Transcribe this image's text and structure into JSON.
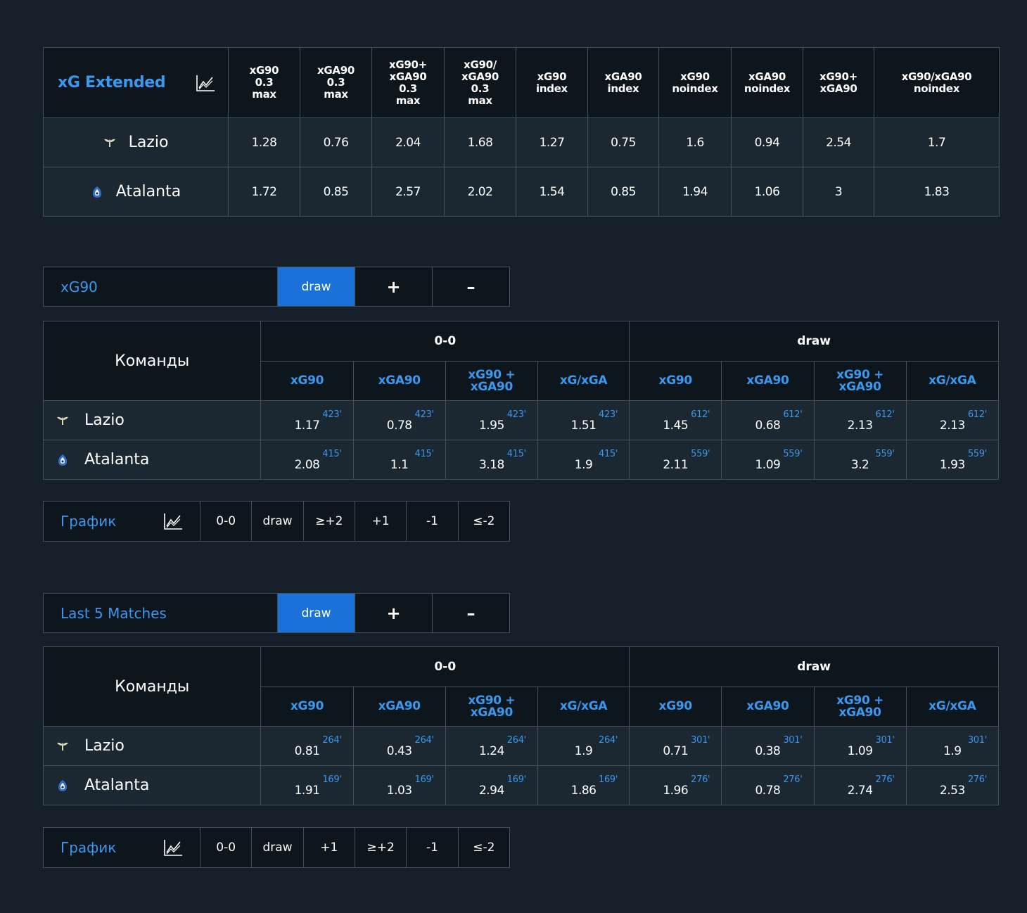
{
  "colors": {
    "background": "#15202a",
    "dark_cell": "#0d151d",
    "row_cell": "#1b2731",
    "accent": "#3a98ef",
    "active_button": "#1a72d8",
    "border": "#44505c"
  },
  "extended": {
    "title": "xG Extended",
    "icon": "chart-icon",
    "headers": [
      [
        "xG90",
        "0.3",
        "max"
      ],
      [
        "xGA90",
        "0.3",
        "max"
      ],
      [
        "xG90+",
        "xGA90",
        "0.3",
        "max"
      ],
      [
        "xG90/",
        "xGA90",
        "0.3",
        "max"
      ],
      [
        "xG90",
        "index"
      ],
      [
        "xGA90",
        "index"
      ],
      [
        "xG90",
        "noindex"
      ],
      [
        "xGA90",
        "noindex"
      ],
      [
        "xG90+",
        "xGA90"
      ],
      [
        "xG90/xGA90",
        "noindex"
      ]
    ],
    "rows": [
      {
        "team": "Lazio",
        "badge": "lazio-eagle-icon",
        "values": [
          "1.28",
          "0.76",
          "2.04",
          "1.68",
          "1.27",
          "0.75",
          "1.6",
          "0.94",
          "2.54",
          "1.7"
        ]
      },
      {
        "team": "Atalanta",
        "badge": "atalanta-badge-icon",
        "values": [
          "1.72",
          "0.85",
          "2.57",
          "2.02",
          "1.54",
          "0.85",
          "1.94",
          "1.06",
          "3",
          "1.83"
        ]
      }
    ]
  },
  "filter1": {
    "label": "xG90",
    "buttons": [
      "draw",
      "+",
      "–"
    ],
    "active": "draw"
  },
  "table1": {
    "commands_label": "Команды",
    "groups": [
      "0-0",
      "draw"
    ],
    "subheaders": [
      [
        "xG90"
      ],
      [
        "xGA90"
      ],
      [
        "xG90 +",
        "xGA90"
      ],
      [
        "xG/xGA"
      ],
      [
        "xG90"
      ],
      [
        "xGA90"
      ],
      [
        "xG90 +",
        "xGA90"
      ],
      [
        "xG/xGA"
      ]
    ],
    "rows": [
      {
        "team": "Lazio",
        "cells": [
          {
            "v": "1.17",
            "m": "423'"
          },
          {
            "v": "0.78",
            "m": "423'"
          },
          {
            "v": "1.95",
            "m": "423'"
          },
          {
            "v": "1.51",
            "m": "423'"
          },
          {
            "v": "1.45",
            "m": "612'"
          },
          {
            "v": "0.68",
            "m": "612'"
          },
          {
            "v": "2.13",
            "m": "612'"
          },
          {
            "v": "2.13",
            "m": "612'"
          }
        ]
      },
      {
        "team": "Atalanta",
        "cells": [
          {
            "v": "2.08",
            "m": "415'"
          },
          {
            "v": "1.1",
            "m": "415'"
          },
          {
            "v": "3.18",
            "m": "415'"
          },
          {
            "v": "1.9",
            "m": "415'"
          },
          {
            "v": "2.11",
            "m": "559'"
          },
          {
            "v": "1.09",
            "m": "559'"
          },
          {
            "v": "3.2",
            "m": "559'"
          },
          {
            "v": "1.93",
            "m": "559'"
          }
        ]
      }
    ]
  },
  "graph1": {
    "label": "График",
    "buttons": [
      "0-0",
      "draw",
      "≥+2",
      "+1",
      "-1",
      "≤-2"
    ]
  },
  "filter2": {
    "label": "Last 5 Matches",
    "buttons": [
      "draw",
      "+",
      "–"
    ],
    "active": "draw"
  },
  "table2": {
    "commands_label": "Команды",
    "groups": [
      "0-0",
      "draw"
    ],
    "subheaders": [
      [
        "xG90"
      ],
      [
        "xGA90"
      ],
      [
        "xG90 +",
        "xGA90"
      ],
      [
        "xG/xGA"
      ],
      [
        "xG90"
      ],
      [
        "xGA90"
      ],
      [
        "xG90 +",
        "xGA90"
      ],
      [
        "xG/xGA"
      ]
    ],
    "rows": [
      {
        "team": "Lazio",
        "cells": [
          {
            "v": "0.81",
            "m": "264'"
          },
          {
            "v": "0.43",
            "m": "264'"
          },
          {
            "v": "1.24",
            "m": "264'"
          },
          {
            "v": "1.9",
            "m": "264'"
          },
          {
            "v": "0.71",
            "m": "301'"
          },
          {
            "v": "0.38",
            "m": "301'"
          },
          {
            "v": "1.09",
            "m": "301'"
          },
          {
            "v": "1.9",
            "m": "301'"
          }
        ]
      },
      {
        "team": "Atalanta",
        "cells": [
          {
            "v": "1.91",
            "m": "169'"
          },
          {
            "v": "1.03",
            "m": "169'"
          },
          {
            "v": "2.94",
            "m": "169'"
          },
          {
            "v": "1.86",
            "m": "169'"
          },
          {
            "v": "1.96",
            "m": "276'"
          },
          {
            "v": "0.78",
            "m": "276'"
          },
          {
            "v": "2.74",
            "m": "276'"
          },
          {
            "v": "2.53",
            "m": "276'"
          }
        ]
      }
    ]
  },
  "graph2": {
    "label": "График",
    "buttons": [
      "0-0",
      "draw",
      "+1",
      "≥+2",
      "-1",
      "≤-2"
    ]
  }
}
